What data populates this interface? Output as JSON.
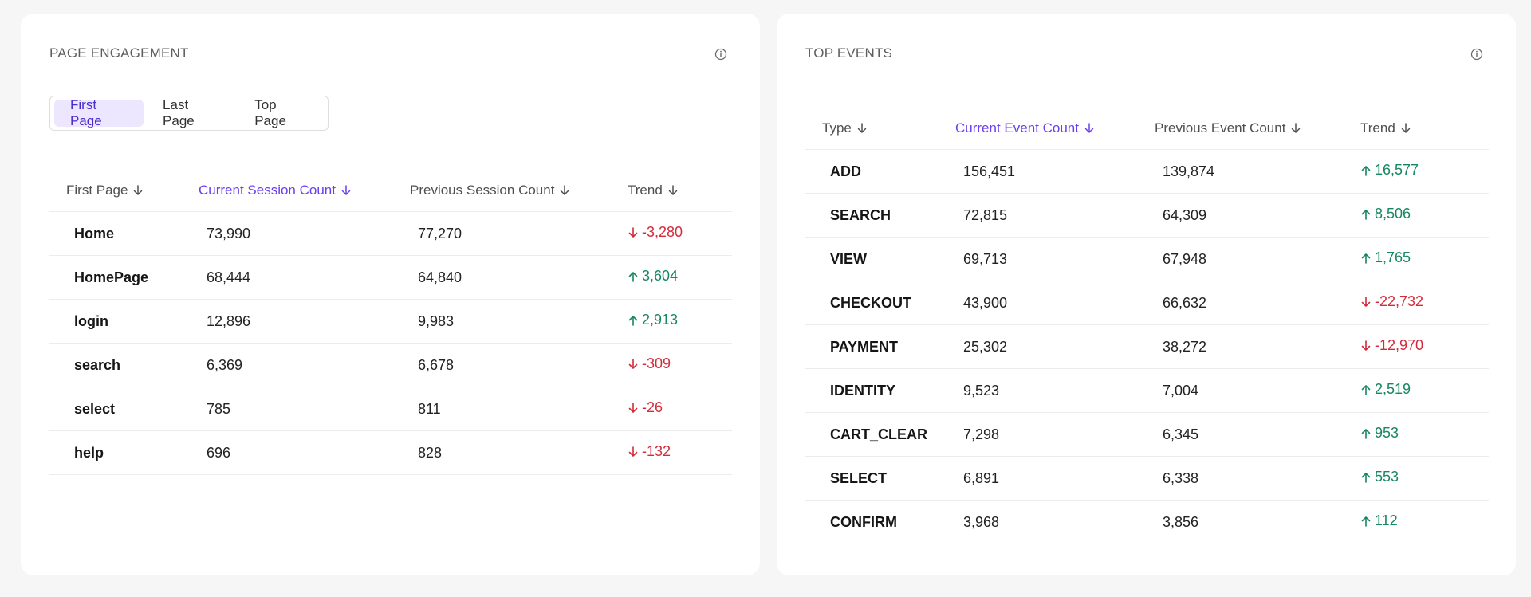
{
  "colors": {
    "accent": "#6b3ff0",
    "tab_active_bg": "#ece6fe",
    "trend_up": "#17875f",
    "trend_down": "#d42a3a",
    "page_bg": "#f6f6f6",
    "card_bg": "#ffffff"
  },
  "page_engagement": {
    "title": "PAGE ENGAGEMENT",
    "info_icon": "info-circle-icon",
    "tabs": [
      {
        "label": "First Page",
        "active": true
      },
      {
        "label": "Last Page",
        "active": false
      },
      {
        "label": "Top Page",
        "active": false
      }
    ],
    "columns": [
      {
        "label": "First Page",
        "sort_icon": "arrow-down-icon",
        "active": false
      },
      {
        "label": "Current Session Count",
        "sort_icon": "arrow-down-icon",
        "active": true
      },
      {
        "label": "Previous Session Count",
        "sort_icon": "arrow-down-icon",
        "active": false
      },
      {
        "label": "Trend",
        "sort_icon": "arrow-down-icon",
        "active": false
      }
    ],
    "rows": [
      {
        "name": "Home",
        "current": "73,990",
        "previous": "77,270",
        "trend": "-3,280",
        "direction": "down"
      },
      {
        "name": "HomePage",
        "current": "68,444",
        "previous": "64,840",
        "trend": "3,604",
        "direction": "up"
      },
      {
        "name": "login",
        "current": "12,896",
        "previous": "9,983",
        "trend": "2,913",
        "direction": "up"
      },
      {
        "name": "search",
        "current": "6,369",
        "previous": "6,678",
        "trend": "-309",
        "direction": "down"
      },
      {
        "name": "select",
        "current": "785",
        "previous": "811",
        "trend": "-26",
        "direction": "down"
      },
      {
        "name": "help",
        "current": "696",
        "previous": "828",
        "trend": "-132",
        "direction": "down"
      }
    ]
  },
  "top_events": {
    "title": "TOP EVENTS",
    "info_icon": "info-circle-icon",
    "columns": [
      {
        "label": "Type",
        "sort_icon": "arrow-down-icon",
        "active": false
      },
      {
        "label": "Current Event Count",
        "sort_icon": "arrow-down-icon",
        "active": true
      },
      {
        "label": "Previous Event Count",
        "sort_icon": "arrow-down-icon",
        "active": false
      },
      {
        "label": "Trend",
        "sort_icon": "arrow-down-icon",
        "active": false
      }
    ],
    "rows": [
      {
        "name": "ADD",
        "current": "156,451",
        "previous": "139,874",
        "trend": "16,577",
        "direction": "up"
      },
      {
        "name": "SEARCH",
        "current": "72,815",
        "previous": "64,309",
        "trend": "8,506",
        "direction": "up"
      },
      {
        "name": "VIEW",
        "current": "69,713",
        "previous": "67,948",
        "trend": "1,765",
        "direction": "up"
      },
      {
        "name": "CHECKOUT",
        "current": "43,900",
        "previous": "66,632",
        "trend": "-22,732",
        "direction": "down"
      },
      {
        "name": "PAYMENT",
        "current": "25,302",
        "previous": "38,272",
        "trend": "-12,970",
        "direction": "down"
      },
      {
        "name": "IDENTITY",
        "current": "9,523",
        "previous": "7,004",
        "trend": "2,519",
        "direction": "up"
      },
      {
        "name": "CART_CLEAR",
        "current": "7,298",
        "previous": "6,345",
        "trend": "953",
        "direction": "up"
      },
      {
        "name": "SELECT",
        "current": "6,891",
        "previous": "6,338",
        "trend": "553",
        "direction": "up"
      },
      {
        "name": "CONFIRM",
        "current": "3,968",
        "previous": "3,856",
        "trend": "112",
        "direction": "up"
      }
    ]
  }
}
